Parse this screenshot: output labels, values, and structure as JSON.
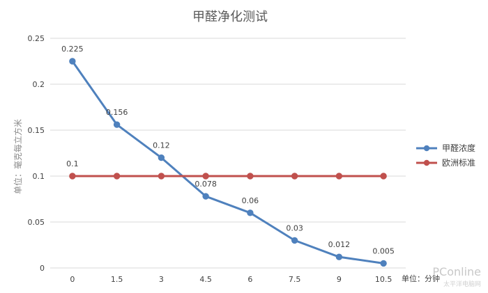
{
  "chart_data": {
    "type": "line",
    "title": "甲醛净化测试",
    "xlabel": "单位：分钟",
    "ylabel": "单位：毫克每立方米",
    "categories": [
      "0",
      "1.5",
      "3",
      "4.5",
      "6",
      "7.5",
      "9",
      "10.5"
    ],
    "ylim": [
      0,
      0.25
    ],
    "yticks": [
      0,
      0.05,
      0.1,
      0.15,
      0.2,
      0.25
    ],
    "ytick_labels": [
      "0",
      "0.05",
      "0.1",
      "0.15",
      "0.2",
      "0.25"
    ],
    "grid": true,
    "legend_position": "right",
    "series": [
      {
        "name": "甲醛浓度",
        "color": "#4f81bd",
        "values": [
          0.225,
          0.156,
          0.12,
          0.078,
          0.06,
          0.03,
          0.012,
          0.005
        ],
        "labels": [
          "0.225",
          "0.156",
          "0.12",
          "0.078",
          "0.06",
          "0.03",
          "0.012",
          "0.005"
        ]
      },
      {
        "name": "欧洲标准",
        "color": "#c0504d",
        "values": [
          0.1,
          0.1,
          0.1,
          0.1,
          0.1,
          0.1,
          0.1,
          0.1
        ],
        "labels": [
          "0.1"
        ]
      }
    ]
  },
  "watermark": {
    "brand": "PConline",
    "sub": "太平洋电脑网"
  }
}
